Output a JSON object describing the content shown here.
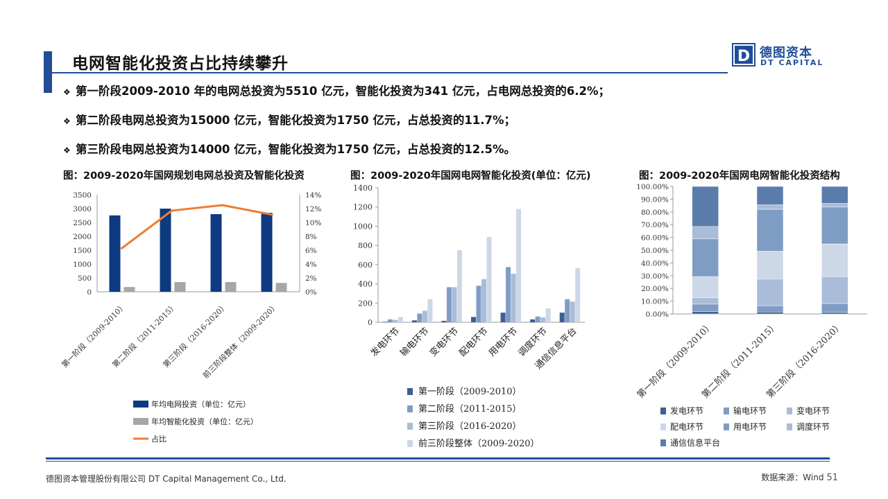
{
  "header": {
    "title": "电网智能化投资占比持续攀升",
    "logo_cn": "德图资本",
    "logo_en": "DT CAPITAL",
    "logo_letter": "D"
  },
  "colors": {
    "brand": "#1f4e96",
    "dark_bar": "#0d3a80",
    "gray_bar": "#a6a6a6",
    "orange_line": "#ed7d31",
    "stage1": "#3d5f94",
    "stage2": "#7f9cc4",
    "stage3": "#a9bcd8",
    "stage_all": "#ccd7e8"
  },
  "bullets": [
    "第一阶段2009-2010 年的电网总投资为5510 亿元，智能化投资为341 亿元，占电网总投资的6.2%；",
    "第二阶段电网总投资为15000 亿元，智能化投资为1750 亿元，占总投资的11.7%；",
    "第三阶段电网总投资为14000 亿元，智能化投资为1750 亿元，占总投资的12.5%。"
  ],
  "chart_data": [
    {
      "type": "bar",
      "title": "图：2009-2020年国网规划电网总投资及智能化投资",
      "categories": [
        "第一阶段（2009-2010）",
        "第二阶段（2011-2015）",
        "第三阶段（2016-2020）",
        "前三阶段整体（2009-2020）"
      ],
      "series": [
        {
          "name": "年均电网投资（单位：亿元）",
          "values": [
            2755,
            3000,
            2800,
            2850
          ],
          "axis": "left",
          "color": "#0d3a80"
        },
        {
          "name": "年均智能化投资（单位：亿元）",
          "values": [
            170,
            350,
            350,
            320
          ],
          "axis": "left",
          "color": "#a6a6a6"
        },
        {
          "name": "占比",
          "type": "line",
          "values": [
            6.2,
            11.7,
            12.5,
            11.1
          ],
          "axis": "right",
          "color": "#ed7d31"
        }
      ],
      "ylim": [
        0,
        3500
      ],
      "yticks": [
        "0",
        "500",
        "1000",
        "1500",
        "2000",
        "2500",
        "3000",
        "3500"
      ],
      "y2lim": [
        0,
        14
      ],
      "y2ticks": [
        "0%",
        "2%",
        "4%",
        "6%",
        "8%",
        "10%",
        "12%",
        "14%"
      ],
      "legend": "bottom",
      "grid": false
    },
    {
      "type": "bar",
      "title": "图：2009-2020年国网电网智能化投资(单位：亿元)",
      "categories": [
        "发电环节",
        "输电环节",
        "变电环节",
        "配电环节",
        "用电环节",
        "调度环节",
        "通信信息平台"
      ],
      "series": [
        {
          "name": "第一阶段（2009-2010）",
          "values": [
            5,
            20,
            15,
            55,
            100,
            30,
            100
          ],
          "color": "#3d5f94"
        },
        {
          "name": "第二阶段（2011-2015）",
          "values": [
            30,
            90,
            365,
            380,
            575,
            60,
            240
          ],
          "color": "#7f9cc4"
        },
        {
          "name": "第三阶段（2016-2020）",
          "values": [
            25,
            120,
            365,
            450,
            505,
            50,
            215
          ],
          "color": "#a9bcd8"
        },
        {
          "name": "前三阶段整体（2009-2020）",
          "values": [
            55,
            240,
            750,
            890,
            1180,
            145,
            565
          ],
          "color": "#ccd7e8"
        }
      ],
      "ylim": [
        0,
        1400
      ],
      "yticks": [
        "0",
        "200",
        "400",
        "600",
        "800",
        "1000",
        "1200",
        "1400"
      ],
      "legend": "bottom",
      "grid": false
    },
    {
      "type": "bar",
      "stacked": true,
      "percent": true,
      "title": "图：2009-2020年国网电网智能化投资结构",
      "categories": [
        "第一阶段（2009-2010）",
        "第二阶段（2011-2015）",
        "第三阶段（2016-2020）"
      ],
      "series": [
        {
          "name": "发电环节",
          "values": [
            1.8,
            1.5,
            1.2
          ],
          "color": "#3d5f94"
        },
        {
          "name": "输电环节",
          "values": [
            5.9,
            5.0,
            7.0
          ],
          "color": "#7f9cc4"
        },
        {
          "name": "变电环节",
          "values": [
            5.0,
            21.0,
            21.0
          ],
          "color": "#a9bcd8"
        },
        {
          "name": "配电环节",
          "values": [
            16.6,
            21.7,
            25.7
          ],
          "color": "#ccd7e8"
        },
        {
          "name": "用电环节",
          "values": [
            29.6,
            32.9,
            28.9
          ],
          "color": "#7f9cc4"
        },
        {
          "name": "调度环节",
          "values": [
            9.7,
            3.5,
            2.9
          ],
          "color": "#a9bcd8"
        },
        {
          "name": "通信信息平台",
          "values": [
            31.4,
            14.4,
            13.3
          ],
          "color": "#5a7cab"
        }
      ],
      "ylim": [
        0,
        100
      ],
      "yticks": [
        "0.00%",
        "10.00%",
        "20.00%",
        "30.00%",
        "40.00%",
        "50.00%",
        "60.00%",
        "70.00%",
        "80.00%",
        "90.00%",
        "100.00%"
      ],
      "legend": "bottom",
      "grid": false
    }
  ],
  "footer": {
    "company": "德图资本管理股份有限公司 DT Capital Management Co., Ltd.",
    "source": "数据来源：Wind",
    "page": "51"
  }
}
